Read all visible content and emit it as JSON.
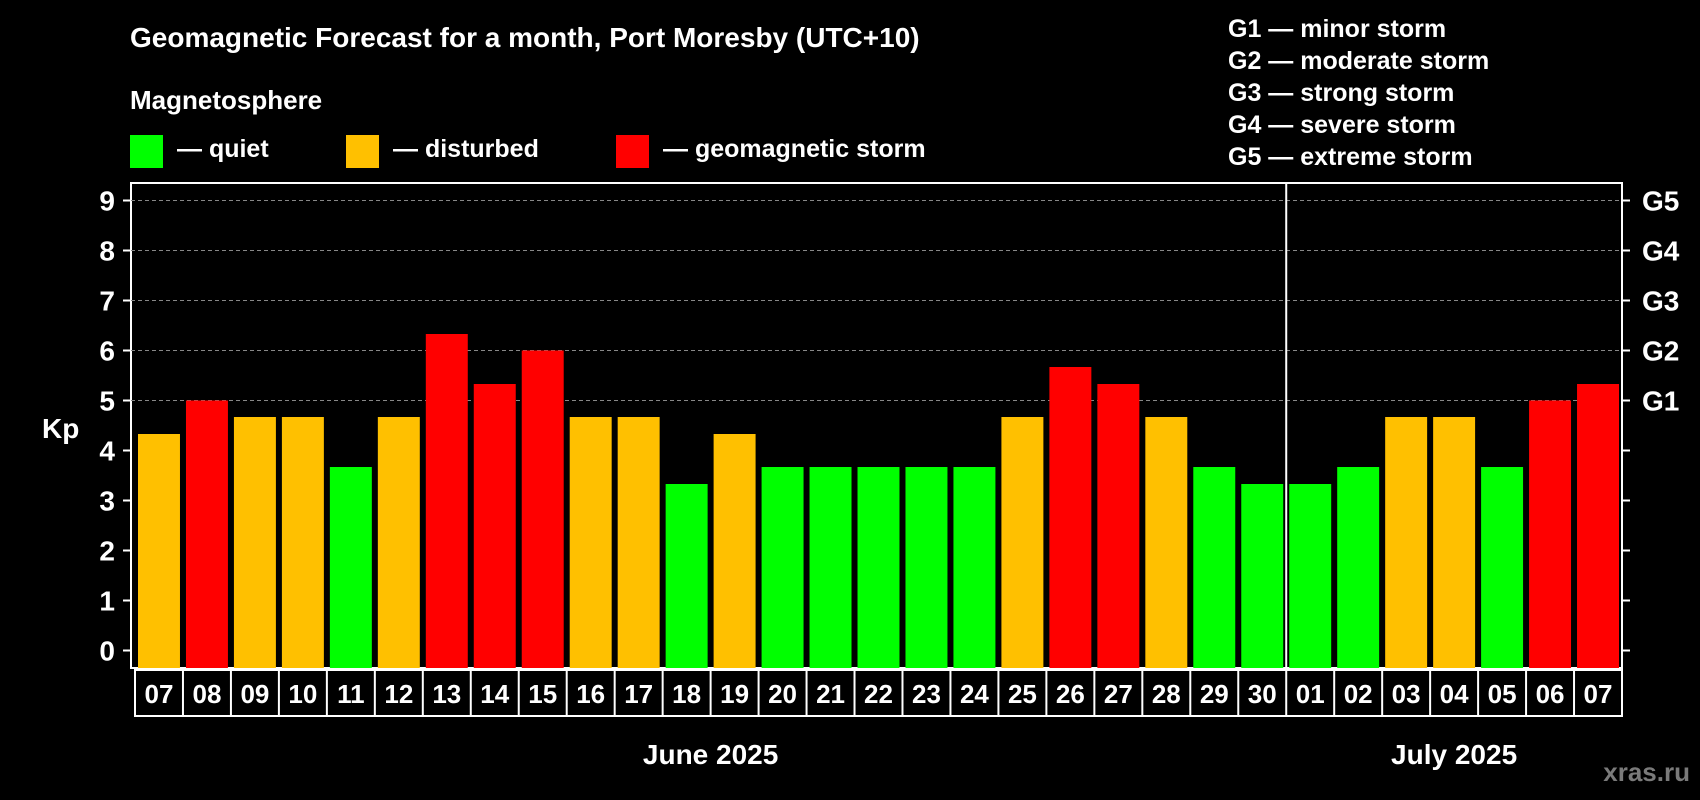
{
  "header": {
    "title": "Geomagnetic Forecast for a month, Port Moresby (UTC+10)",
    "subtitle": "Magnetosphere"
  },
  "legend": [
    {
      "label": "— quiet",
      "color": "#00ff00"
    },
    {
      "label": "— disturbed",
      "color": "#ffc000"
    },
    {
      "label": "— geomagnetic storm",
      "color": "#ff0000"
    }
  ],
  "storm_scale": [
    "G1 — minor storm",
    "G2 — moderate storm",
    "G3 — strong storm",
    "G4 — severe storm",
    "G5 — extreme storm"
  ],
  "watermark": "xras.ru",
  "colors": {
    "quiet": "#00ff00",
    "disturbed": "#ffc000",
    "storm": "#ff0000",
    "background": "#000000",
    "foreground": "#ffffff",
    "grid": "#888888"
  },
  "chart_data": {
    "type": "bar",
    "title": "Geomagnetic Forecast for a month, Port Moresby (UTC+10)",
    "ylabel": "Kp",
    "ylim": [
      -0.35,
      9.35
    ],
    "yticks": [
      0,
      1,
      2,
      3,
      4,
      5,
      6,
      7,
      8,
      9
    ],
    "right_axis": [
      {
        "value": 5,
        "label": "G1"
      },
      {
        "value": 6,
        "label": "G2"
      },
      {
        "value": 7,
        "label": "G3"
      },
      {
        "value": 8,
        "label": "G4"
      },
      {
        "value": 9,
        "label": "G5"
      }
    ],
    "grid_lines": [
      5,
      6,
      7,
      8,
      9
    ],
    "categories": [
      "07",
      "08",
      "09",
      "10",
      "11",
      "12",
      "13",
      "14",
      "15",
      "16",
      "17",
      "18",
      "19",
      "20",
      "21",
      "22",
      "23",
      "24",
      "25",
      "26",
      "27",
      "28",
      "29",
      "30",
      "01",
      "02",
      "03",
      "04",
      "05",
      "06",
      "07"
    ],
    "values": [
      4.33,
      5.0,
      4.67,
      4.67,
      3.67,
      4.67,
      6.33,
      5.33,
      6.0,
      4.67,
      4.67,
      3.33,
      4.33,
      3.67,
      3.67,
      3.67,
      3.67,
      3.67,
      4.67,
      5.67,
      5.33,
      4.67,
      3.67,
      3.33,
      3.33,
      3.67,
      4.67,
      4.67,
      3.67,
      5.0,
      5.33
    ],
    "levels": [
      "disturbed",
      "storm",
      "disturbed",
      "disturbed",
      "quiet",
      "disturbed",
      "storm",
      "storm",
      "storm",
      "disturbed",
      "disturbed",
      "quiet",
      "disturbed",
      "quiet",
      "quiet",
      "quiet",
      "quiet",
      "quiet",
      "disturbed",
      "storm",
      "storm",
      "disturbed",
      "quiet",
      "quiet",
      "quiet",
      "quiet",
      "disturbed",
      "disturbed",
      "quiet",
      "storm",
      "storm"
    ],
    "month_groups": [
      {
        "label": "June 2025",
        "start": 0,
        "end": 23
      },
      {
        "label": "July 2025",
        "start": 24,
        "end": 30
      }
    ],
    "month_divider_after_index": 23
  }
}
